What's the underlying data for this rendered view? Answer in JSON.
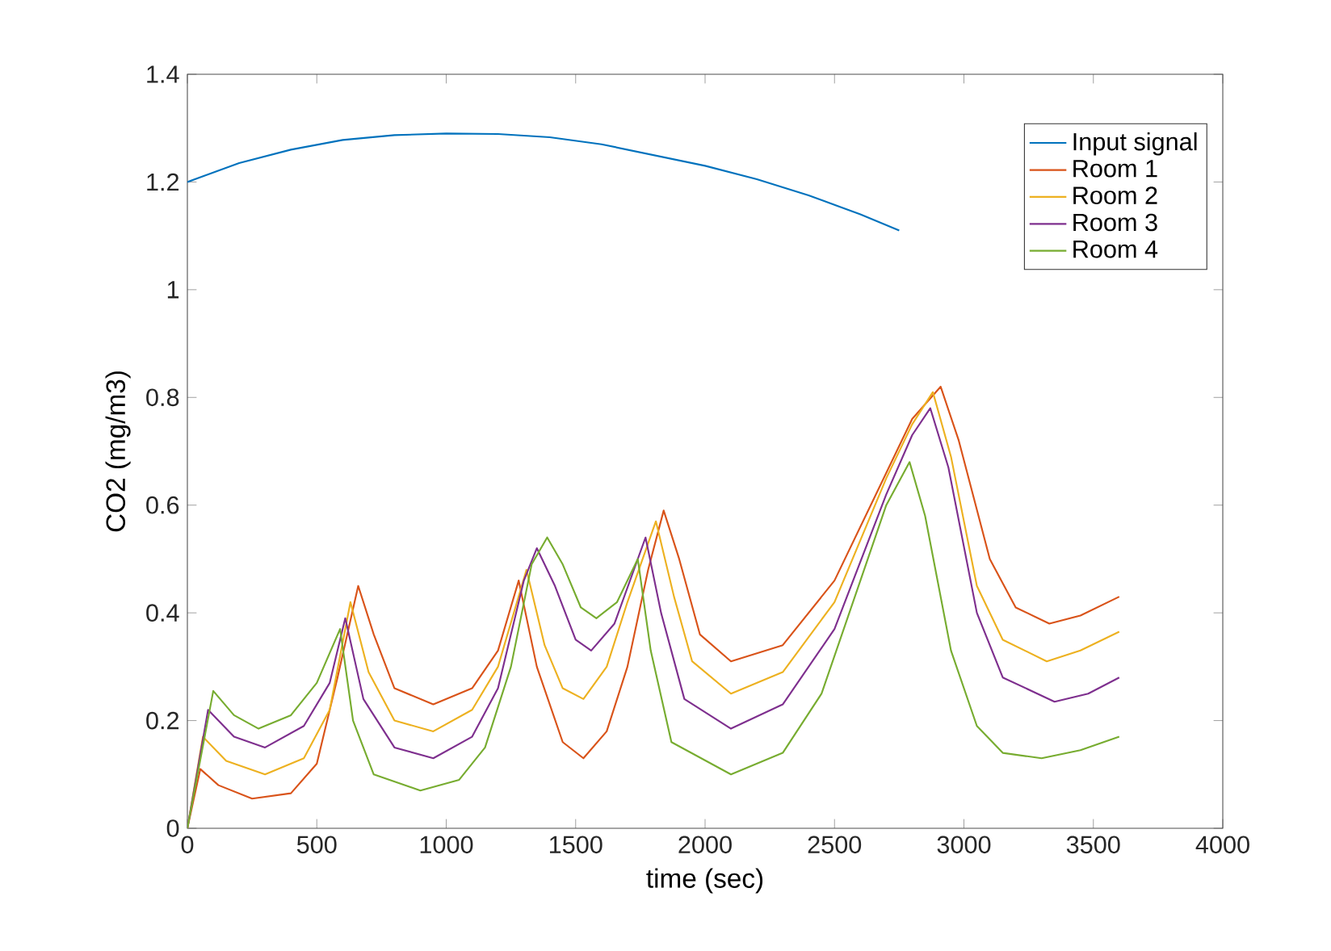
{
  "chart_data": {
    "type": "line",
    "xlabel": "time (sec)",
    "ylabel": "CO2 (mg/m3)",
    "xlim": [
      0,
      4000
    ],
    "ylim": [
      0,
      1.4
    ],
    "xticks": [
      0,
      500,
      1000,
      1500,
      2000,
      2500,
      3000,
      3500,
      4000
    ],
    "yticks": [
      0,
      0.2,
      0.4,
      0.6,
      0.8,
      1,
      1.2,
      1.4
    ],
    "grid": false,
    "legend": "top right",
    "marker": "none",
    "line_style": "solid",
    "series": [
      {
        "name": "Input signal",
        "color": "#0072bd",
        "x": [
          0,
          200,
          400,
          600,
          800,
          1000,
          1200,
          1400,
          1600,
          1800,
          2000,
          2200,
          2400,
          2600,
          2750
        ],
        "values": [
          1.2,
          1.235,
          1.26,
          1.278,
          1.287,
          1.29,
          1.289,
          1.283,
          1.27,
          1.25,
          1.23,
          1.205,
          1.175,
          1.14,
          1.11
        ]
      },
      {
        "name": "Room 1",
        "color": "#d95319",
        "x": [
          0,
          50,
          120,
          250,
          400,
          500,
          580,
          660,
          720,
          800,
          950,
          1100,
          1200,
          1280,
          1350,
          1450,
          1530,
          1620,
          1700,
          1780,
          1840,
          1900,
          1980,
          2100,
          2300,
          2500,
          2700,
          2800,
          2910,
          2980,
          3100,
          3200,
          3330,
          3450,
          3600
        ],
        "values": [
          0,
          0.11,
          0.08,
          0.055,
          0.065,
          0.12,
          0.28,
          0.45,
          0.36,
          0.26,
          0.23,
          0.26,
          0.33,
          0.46,
          0.3,
          0.16,
          0.13,
          0.18,
          0.3,
          0.48,
          0.59,
          0.5,
          0.36,
          0.31,
          0.34,
          0.46,
          0.66,
          0.76,
          0.82,
          0.72,
          0.5,
          0.41,
          0.38,
          0.395,
          0.43
        ]
      },
      {
        "name": "Room 2",
        "color": "#edb120",
        "x": [
          0,
          60,
          150,
          300,
          450,
          550,
          630,
          700,
          800,
          950,
          1100,
          1200,
          1310,
          1380,
          1450,
          1530,
          1620,
          1700,
          1810,
          1880,
          1950,
          2100,
          2300,
          2500,
          2700,
          2800,
          2880,
          2950,
          3050,
          3150,
          3320,
          3450,
          3600
        ],
        "values": [
          0,
          0.17,
          0.125,
          0.1,
          0.13,
          0.22,
          0.42,
          0.29,
          0.2,
          0.18,
          0.22,
          0.3,
          0.48,
          0.34,
          0.26,
          0.24,
          0.3,
          0.42,
          0.57,
          0.43,
          0.31,
          0.25,
          0.29,
          0.42,
          0.65,
          0.75,
          0.81,
          0.69,
          0.45,
          0.35,
          0.31,
          0.33,
          0.365
        ]
      },
      {
        "name": "Room 3",
        "color": "#7e2f8e",
        "x": [
          0,
          80,
          180,
          300,
          450,
          550,
          610,
          680,
          800,
          950,
          1100,
          1200,
          1300,
          1350,
          1420,
          1500,
          1560,
          1650,
          1770,
          1830,
          1920,
          2100,
          2300,
          2500,
          2700,
          2800,
          2870,
          2940,
          3050,
          3150,
          3350,
          3480,
          3600
        ],
        "values": [
          0,
          0.22,
          0.17,
          0.15,
          0.19,
          0.27,
          0.39,
          0.24,
          0.15,
          0.13,
          0.17,
          0.26,
          0.46,
          0.52,
          0.45,
          0.35,
          0.33,
          0.38,
          0.54,
          0.4,
          0.24,
          0.185,
          0.23,
          0.37,
          0.62,
          0.73,
          0.78,
          0.67,
          0.4,
          0.28,
          0.235,
          0.25,
          0.28
        ]
      },
      {
        "name": "Room 4",
        "color": "#77ac30",
        "x": [
          0,
          100,
          180,
          275,
          400,
          500,
          590,
          640,
          720,
          900,
          1050,
          1150,
          1250,
          1330,
          1390,
          1450,
          1520,
          1580,
          1660,
          1740,
          1790,
          1870,
          2100,
          2300,
          2450,
          2600,
          2700,
          2790,
          2850,
          2950,
          3050,
          3150,
          3300,
          3450,
          3600
        ],
        "values": [
          0,
          0.255,
          0.21,
          0.185,
          0.21,
          0.27,
          0.37,
          0.2,
          0.1,
          0.07,
          0.09,
          0.15,
          0.3,
          0.49,
          0.54,
          0.49,
          0.41,
          0.39,
          0.42,
          0.5,
          0.33,
          0.16,
          0.1,
          0.14,
          0.25,
          0.46,
          0.6,
          0.68,
          0.58,
          0.33,
          0.19,
          0.14,
          0.13,
          0.145,
          0.17
        ]
      }
    ]
  }
}
